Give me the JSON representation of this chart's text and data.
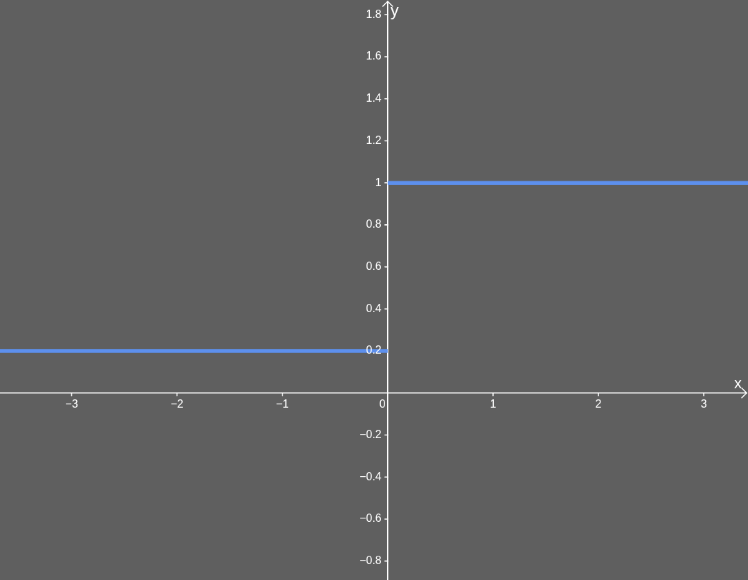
{
  "chart_data": {
    "type": "line",
    "xlabel": "x",
    "ylabel": "y",
    "xlim": [
      -3.68,
      3.42
    ],
    "ylim": [
      -0.89,
      1.87
    ],
    "xticks": [
      {
        "value": -3,
        "label": "−3"
      },
      {
        "value": -2,
        "label": "−2"
      },
      {
        "value": -1,
        "label": "−1"
      },
      0,
      1,
      2,
      3
    ],
    "yticks": [
      {
        "value": -0.8,
        "label": "−0.8"
      },
      {
        "value": -0.6,
        "label": "−0.6"
      },
      {
        "value": -0.4,
        "label": "−0.4"
      },
      {
        "value": -0.2,
        "label": "−0.2"
      },
      0.2,
      0.4,
      0.6,
      0.8,
      1,
      1.2,
      1.4,
      1.6,
      1.8
    ],
    "marker": "none",
    "series": [
      {
        "color": "#5d90ee",
        "x": [
          -3.68,
          0
        ],
        "values": [
          0.2,
          0.2
        ]
      },
      {
        "color": "#5d90ee",
        "x": [
          0,
          3.42
        ],
        "values": [
          1,
          1
        ]
      }
    ]
  }
}
